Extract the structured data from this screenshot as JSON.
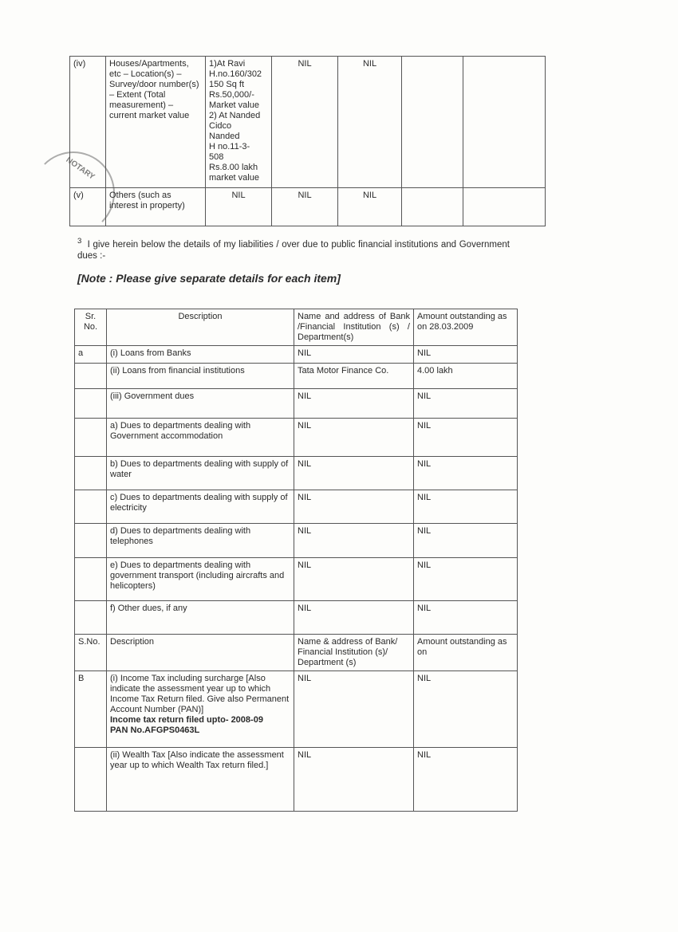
{
  "assets_table": {
    "rows": [
      {
        "sr": "(iv)",
        "desc": "Houses/Apartments, etc – Location(s) – Survey/door number(s) – Extent (Total measurement) – current market value",
        "c1": [
          "1)At Ravi",
          "H.no.160/302",
          "150 Sq ft",
          "Rs.50,000/-",
          "Market value",
          "2) At Nanded",
          "Cidco",
          "Nanded",
          "H no.11-3-",
          "508",
          "Rs.8.00 lakh",
          "market value"
        ],
        "c2": "NIL",
        "c3": "NIL",
        "c4": "",
        "c5": ""
      },
      {
        "sr": "(v)",
        "desc": "Others (such as interest in property)",
        "c1": [
          "NIL"
        ],
        "c2": "NIL",
        "c3": "NIL",
        "c4": "",
        "c5": ""
      }
    ]
  },
  "section3": {
    "number": "3",
    "text": "I give herein below the details of my liabilities / over due to public financial institutions and Government dues :-",
    "note": "[Note : Please give separate details for each item]"
  },
  "stamp_text": "NOTARY",
  "liabilities_table": {
    "header": {
      "sr": "Sr. No.",
      "desc": "Description",
      "name": "Name and address of Bank /Financial Institution (s) / Department(s)",
      "amount": "Amount outstanding as on 28.03.2009"
    },
    "rows": [
      {
        "sr": "a",
        "desc": "(i) Loans from Banks",
        "name": "NIL",
        "amount": "NIL"
      },
      {
        "sr": "",
        "desc": "(ii) Loans from financial institutions",
        "name": "Tata Motor Finance Co.",
        "amount": "4.00 lakh"
      },
      {
        "sr": "",
        "desc": "(iii) Government dues",
        "name": "NIL",
        "amount": "NIL"
      },
      {
        "sr": "",
        "desc": "a) Dues to departments dealing with Government accommodation",
        "name": "NIL",
        "amount": "NIL"
      },
      {
        "sr": "",
        "desc": "b) Dues to departments dealing with supply of water",
        "name": "NIL",
        "amount": "NIL"
      },
      {
        "sr": "",
        "desc": "c) Dues to departments dealing with supply of electricity",
        "name": "NIL",
        "amount": "NIL"
      },
      {
        "sr": "",
        "desc": "d) Dues to departments dealing with telephones",
        "name": "NIL",
        "amount": "NIL"
      },
      {
        "sr": "",
        "desc": "e) Dues to departments dealing with government transport (including aircrafts and helicopters)",
        "name": "NIL",
        "amount": "NIL"
      },
      {
        "sr": "",
        "desc": "f) Other dues, if any",
        "name": "NIL",
        "amount": "NIL"
      }
    ],
    "header2": {
      "sr": "S.No.",
      "desc": "Description",
      "name": "Name & address of Bank/ Financial Institution (s)/ Department (s)",
      "amount": "Amount outstanding as on"
    },
    "rows2": [
      {
        "sr": "B",
        "desc": "(i) Income Tax including surcharge [Also indicate the assessment year up to which Income Tax Return filed. Give also Permanent Account Number (PAN)]",
        "bold1": "Income tax return filed upto- 2008-09",
        "bold2": "PAN No.AFGPS0463L",
        "name": "NIL",
        "amount": "NIL"
      },
      {
        "sr": "",
        "desc": "(ii) Wealth Tax [Also indicate the assessment year up to which Wealth Tax return filed.]",
        "name": "NIL",
        "amount": "NIL"
      }
    ]
  }
}
